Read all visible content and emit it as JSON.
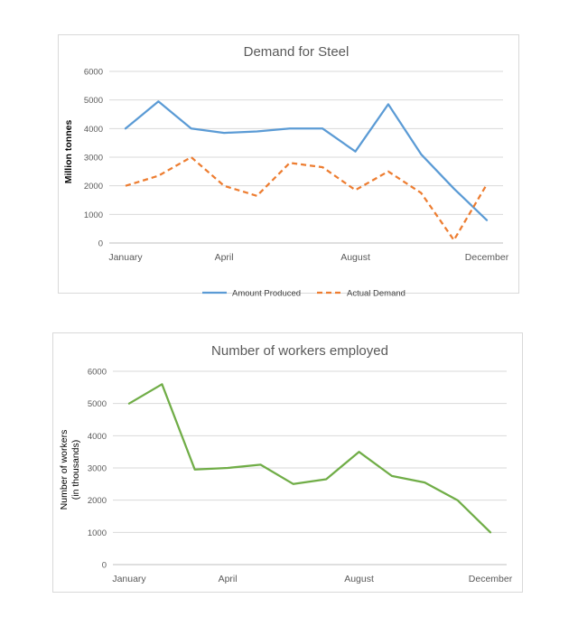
{
  "chart_data": [
    {
      "type": "line",
      "title": "Demand for Steel",
      "xlabel": "",
      "ylabel": "Million tonnes",
      "ylim": [
        0,
        6000
      ],
      "yticks": [
        "0",
        "1000",
        "2000",
        "3000",
        "4000",
        "5000",
        "6000"
      ],
      "x": [
        "January",
        "February",
        "March",
        "April",
        "May",
        "June",
        "July",
        "August",
        "September",
        "October",
        "November",
        "December"
      ],
      "xtick_labels": [
        "January",
        "",
        "",
        "April",
        "",
        "",
        "",
        "August",
        "",
        "",
        "",
        "December"
      ],
      "grid": true,
      "legend_position": "bottom",
      "series": [
        {
          "name": "Amount Produced",
          "color": "#5b9bd5",
          "dashed": false,
          "values": [
            4000,
            4950,
            4000,
            3850,
            3900,
            4000,
            4000,
            3200,
            4850,
            3100,
            1900,
            800
          ]
        },
        {
          "name": "Actual Demand",
          "color": "#ed7d31",
          "dashed": true,
          "values": [
            2000,
            2350,
            3000,
            2000,
            1650,
            2800,
            2650,
            1850,
            2500,
            1750,
            100,
            2050
          ]
        }
      ]
    },
    {
      "type": "line",
      "title": "Number of workers employed",
      "xlabel": "",
      "ylabel": "Number of workers",
      "ylabel2": "(in thousands)",
      "ylim": [
        0,
        6000
      ],
      "yticks": [
        "0",
        "1000",
        "2000",
        "3000",
        "4000",
        "5000",
        "6000"
      ],
      "x": [
        "January",
        "February",
        "March",
        "April",
        "May",
        "June",
        "July",
        "August",
        "September",
        "October",
        "November",
        "December"
      ],
      "xtick_labels": [
        "January",
        "",
        "",
        "April",
        "",
        "",
        "",
        "August",
        "",
        "",
        "",
        "December"
      ],
      "grid": true,
      "legend_position": "none",
      "series": [
        {
          "color": "#70ad47",
          "dashed": false,
          "values": [
            5000,
            5600,
            2950,
            3000,
            3100,
            2500,
            2650,
            3500,
            2750,
            2550,
            2000,
            1000
          ]
        }
      ]
    }
  ]
}
